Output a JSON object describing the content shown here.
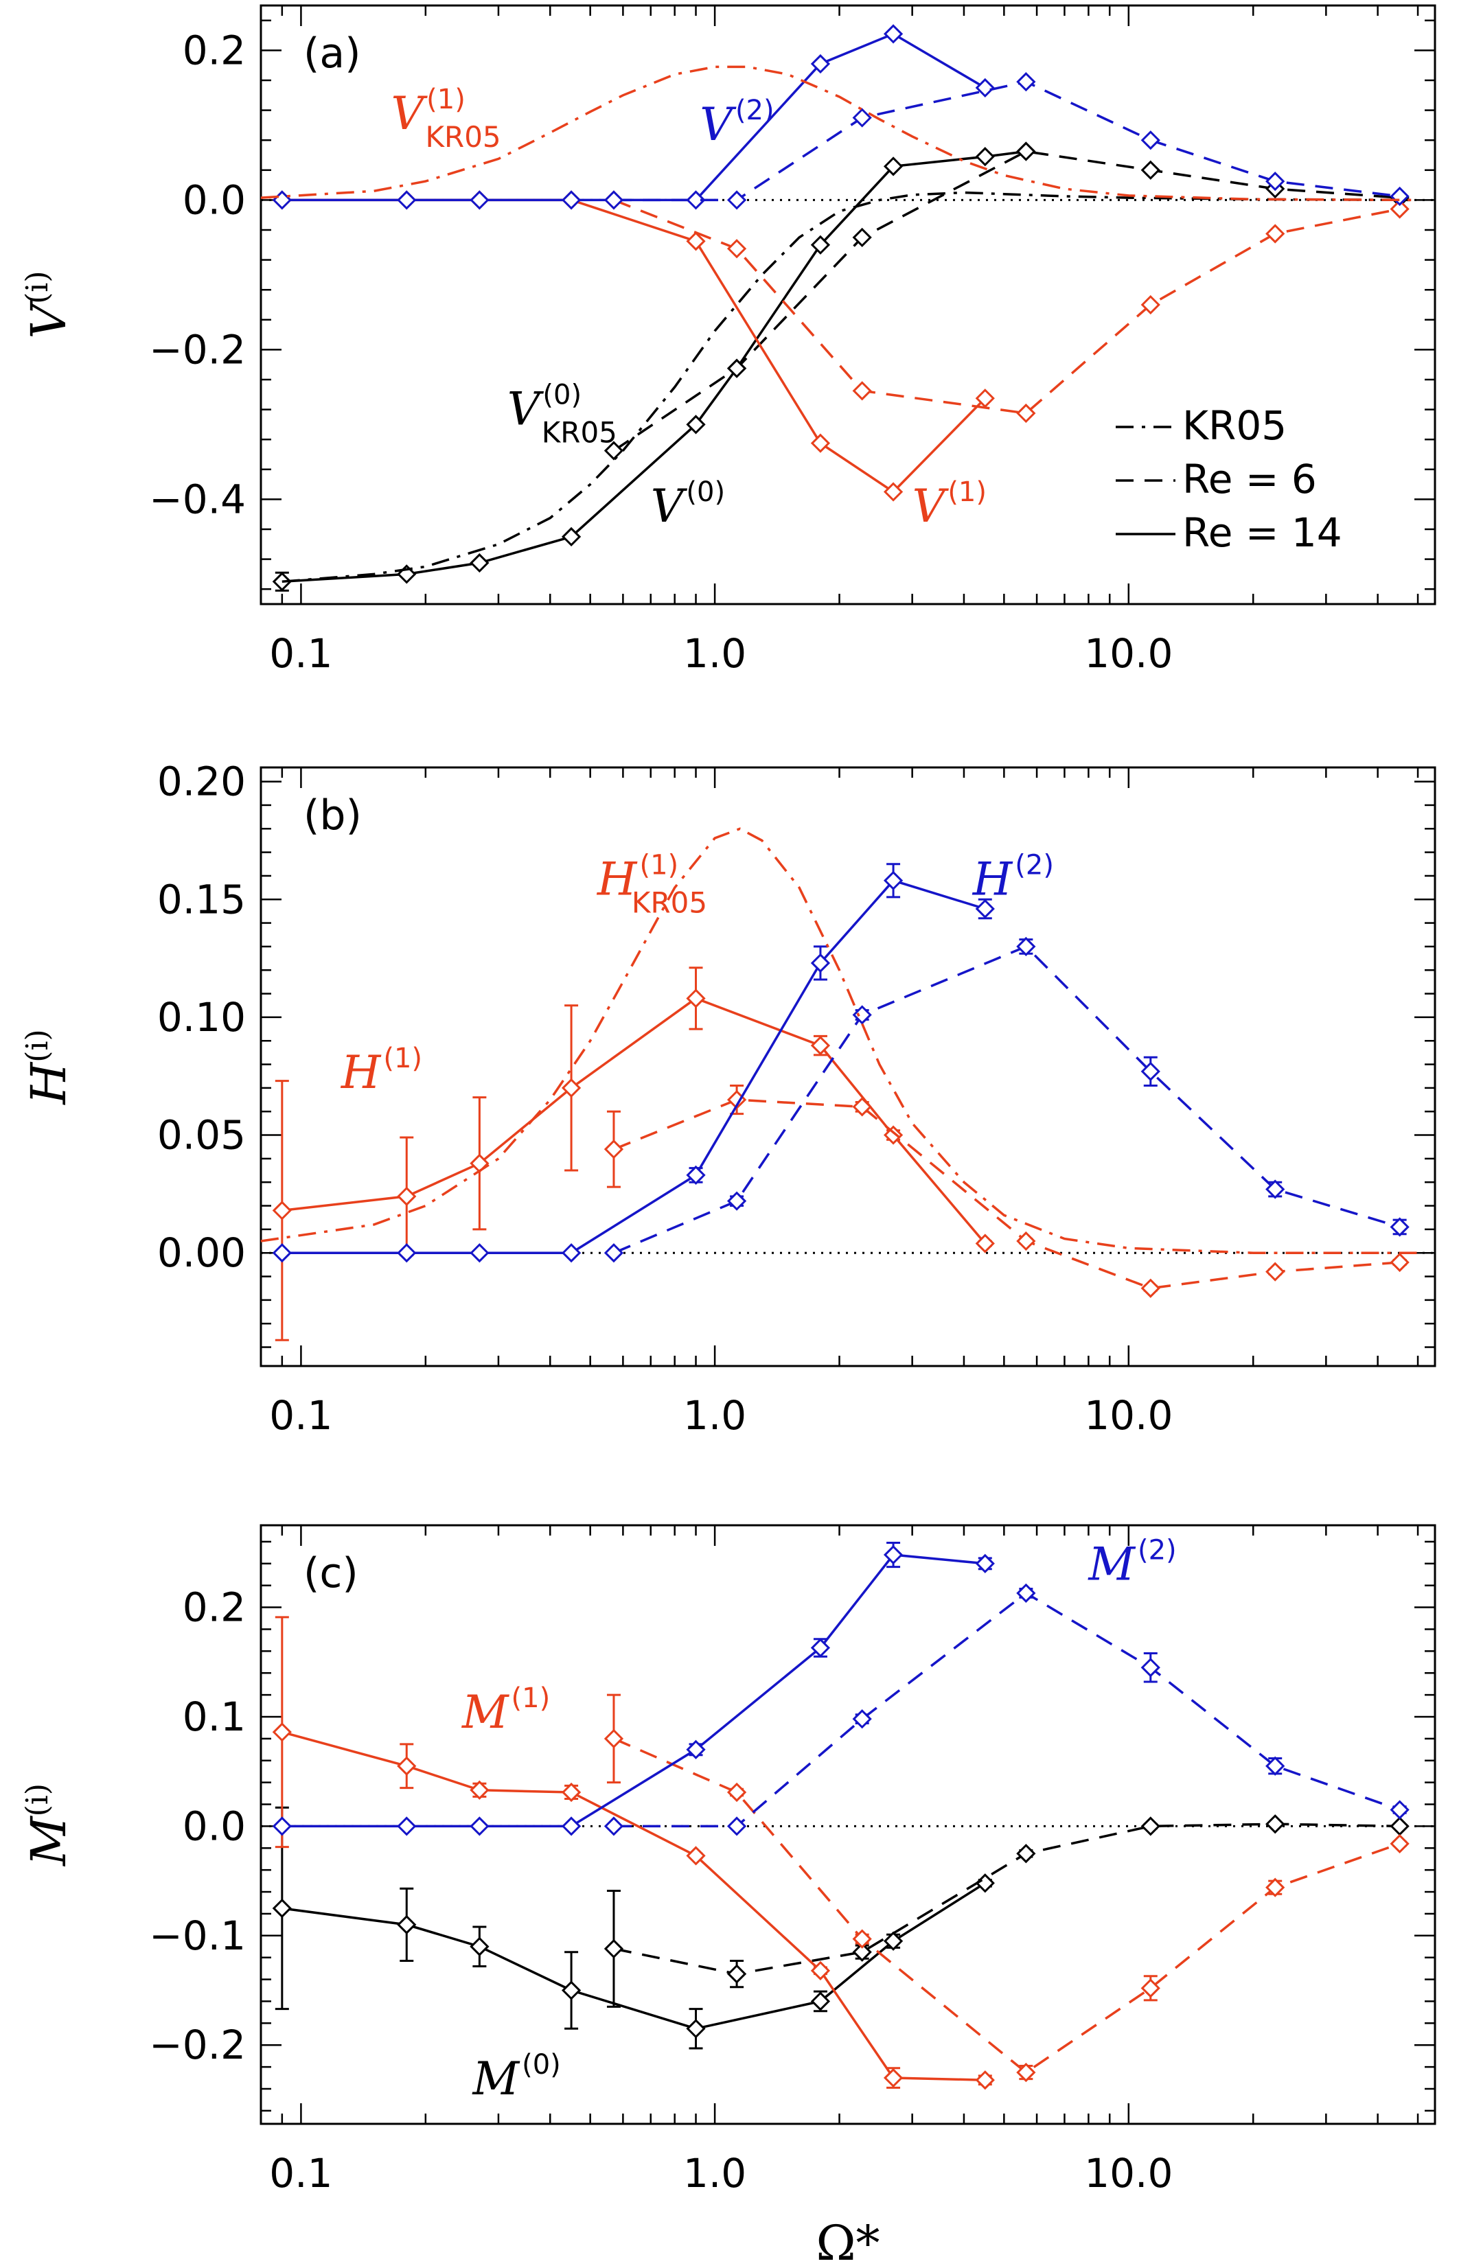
{
  "colors": {
    "black": "#000000",
    "red": "#e8401c",
    "blue": "#1515c8"
  },
  "chart_data": {
    "type": "line",
    "xlabel": "Ω*",
    "xscale": "log",
    "xlim": [
      0.08,
      55
    ],
    "xticks": [
      0.1,
      1.0,
      10.0
    ],
    "xtick_labels": [
      "0.1",
      "1.0",
      "10.0"
    ],
    "legend": {
      "placement": "bottom-right of panel (a)",
      "entries": [
        {
          "label": "KR05",
          "style": "dash-dot"
        },
        {
          "label": "Re =   6",
          "style": "dashed"
        },
        {
          "label": "Re = 14",
          "style": "solid"
        }
      ]
    },
    "panels": [
      {
        "label": "(a)",
        "ylabel": "V",
        "ylabel_sup": "(i)",
        "ylim": [
          -0.54,
          0.26
        ],
        "yticks": [
          -0.4,
          -0.2,
          0.0,
          0.2
        ],
        "ytick_labels": [
          "−0.4",
          "−0.2",
          "0.0",
          "0.2"
        ],
        "series": [
          {
            "name": "V(0) Re=14",
            "color": "black",
            "style": "solid",
            "markers": true,
            "x": [
              0.09,
              0.18,
              0.27,
              0.45,
              0.9,
              1.13,
              1.8,
              2.7,
              4.5,
              5.65
            ],
            "y": [
              -0.51,
              -0.5,
              -0.485,
              -0.45,
              -0.3,
              -0.225,
              -0.06,
              0.045,
              0.058,
              0.065
            ],
            "err": [
              0.012,
              0.0,
              0.0,
              0.0,
              0.0,
              0.0,
              0.0,
              0.0,
              0.0,
              0.0
            ]
          },
          {
            "name": "V(0) Re=6",
            "color": "black",
            "style": "dashed",
            "markers": true,
            "x": [
              0.57,
              1.13,
              2.27,
              5.65,
              11.3,
              22.6,
              45.2
            ],
            "y": [
              -0.335,
              -0.225,
              -0.05,
              0.065,
              0.04,
              0.015,
              0.003
            ],
            "err": [
              0,
              0,
              0,
              0,
              0,
              0,
              0
            ]
          },
          {
            "name": "V(1) Re=14",
            "color": "red",
            "style": "solid",
            "markers": true,
            "x": [
              0.09,
              0.18,
              0.27,
              0.45,
              0.9,
              1.8,
              2.7,
              4.5
            ],
            "y": [
              0,
              0,
              0,
              0,
              -0.055,
              -0.325,
              -0.39,
              -0.265
            ],
            "err": [
              0,
              0,
              0,
              0,
              0,
              0,
              0,
              0
            ]
          },
          {
            "name": "V(1) Re=6",
            "color": "red",
            "style": "dashed",
            "markers": true,
            "x": [
              0.57,
              1.13,
              2.27,
              5.65,
              11.3,
              22.6,
              45.2
            ],
            "y": [
              0,
              -0.065,
              -0.255,
              -0.285,
              -0.14,
              -0.045,
              -0.012
            ],
            "err": [
              0,
              0,
              0,
              0,
              0,
              0,
              0
            ]
          },
          {
            "name": "V(2) Re=14",
            "color": "blue",
            "style": "solid",
            "markers": true,
            "x": [
              0.09,
              0.18,
              0.27,
              0.45,
              0.9,
              1.8,
              2.7,
              4.5
            ],
            "y": [
              0,
              0,
              0,
              0,
              0,
              0.182,
              0.222,
              0.15
            ],
            "err": [
              0,
              0,
              0,
              0,
              0,
              0,
              0,
              0
            ]
          },
          {
            "name": "V(2) Re=6",
            "color": "blue",
            "style": "dashed",
            "markers": true,
            "x": [
              0.57,
              1.13,
              2.27,
              5.65,
              11.3,
              22.6,
              45.2
            ],
            "y": [
              0,
              0,
              0.11,
              0.158,
              0.08,
              0.025,
              0.005
            ],
            "err": [
              0,
              0,
              0,
              0,
              0,
              0,
              0
            ]
          },
          {
            "name": "V(0) KR05",
            "color": "black",
            "style": "dashdot",
            "markers": false,
            "x": [
              0.09,
              0.15,
              0.2,
              0.3,
              0.4,
              0.5,
              0.6,
              0.8,
              1.0,
              1.3,
              1.6,
              2.0,
              2.5,
              3.0,
              4.0,
              5.0,
              7.0,
              10.0,
              20.0,
              50.0
            ],
            "y": [
              -0.51,
              -0.5,
              -0.49,
              -0.46,
              -0.425,
              -0.38,
              -0.335,
              -0.25,
              -0.175,
              -0.1,
              -0.05,
              -0.015,
              0.0,
              0.007,
              0.01,
              0.008,
              0.005,
              0.003,
              0.001,
              0.0
            ]
          },
          {
            "name": "V(1) KR05",
            "color": "red",
            "style": "dashdot",
            "markers": false,
            "x": [
              0.08,
              0.15,
              0.2,
              0.3,
              0.4,
              0.5,
              0.6,
              0.8,
              1.0,
              1.2,
              1.5,
              2.0,
              2.5,
              3.0,
              4.0,
              5.0,
              7.0,
              10.0,
              20.0,
              50.0
            ],
            "y": [
              0.003,
              0.012,
              0.025,
              0.055,
              0.09,
              0.118,
              0.14,
              0.168,
              0.178,
              0.178,
              0.168,
              0.138,
              0.108,
              0.085,
              0.052,
              0.033,
              0.015,
              0.006,
              0.001,
              0.0
            ]
          }
        ],
        "hline": 0.0,
        "annotations": [
          {
            "main": "V",
            "sup": "(1)",
            "sub": "KR05",
            "color": "red",
            "x": 0.165,
            "y": 0.095
          },
          {
            "main": "V",
            "sup": "(2)",
            "sub": "",
            "color": "blue",
            "x": 0.92,
            "y": 0.08
          },
          {
            "main": "V",
            "sup": "(0)",
            "sub": "KR05",
            "color": "black",
            "x": 0.315,
            "y": -0.3
          },
          {
            "main": "V",
            "sup": "(0)",
            "sub": "",
            "color": "black",
            "x": 0.7,
            "y": -0.43
          },
          {
            "main": "V",
            "sup": "(1)",
            "sub": "",
            "color": "red",
            "x": 3.0,
            "y": -0.43
          }
        ]
      },
      {
        "label": "(b)",
        "ylabel": "H",
        "ylabel_sup": "(i)",
        "ylim": [
          -0.048,
          0.206
        ],
        "yticks": [
          0.0,
          0.05,
          0.1,
          0.15,
          0.2
        ],
        "ytick_labels": [
          "0.00",
          "0.05",
          "0.10",
          "0.15",
          "0.20"
        ],
        "series": [
          {
            "name": "H(1) Re=14",
            "color": "red",
            "style": "solid",
            "markers": true,
            "x": [
              0.09,
              0.18,
              0.27,
              0.45,
              0.9,
              1.8,
              2.7,
              4.5
            ],
            "y": [
              0.018,
              0.024,
              0.038,
              0.07,
              0.108,
              0.088,
              0.05,
              0.004
            ],
            "err": [
              0.055,
              0.025,
              0.028,
              0.035,
              0.013,
              0.004,
              0.002,
              0.001
            ]
          },
          {
            "name": "H(1) Re=6",
            "color": "red",
            "style": "dashed",
            "markers": true,
            "x": [
              0.57,
              1.13,
              2.27,
              5.65,
              11.3,
              22.6,
              45.2
            ],
            "y": [
              0.044,
              0.065,
              0.062,
              0.005,
              -0.015,
              -0.008,
              -0.004
            ],
            "err": [
              0.016,
              0.006,
              0.002,
              0.001,
              0.001,
              0.001,
              0.001
            ]
          },
          {
            "name": "H(2) Re=14",
            "color": "blue",
            "style": "solid",
            "markers": true,
            "x": [
              0.09,
              0.18,
              0.27,
              0.45,
              0.9,
              1.8,
              2.7,
              4.5
            ],
            "y": [
              0,
              0,
              0,
              0,
              0.033,
              0.123,
              0.158,
              0.146
            ],
            "err": [
              0,
              0,
              0,
              0,
              0.003,
              0.007,
              0.007,
              0.004
            ]
          },
          {
            "name": "H(2) Re=6",
            "color": "blue",
            "style": "dashed",
            "markers": true,
            "x": [
              0.57,
              1.13,
              2.27,
              5.65,
              11.3,
              22.6,
              45.2
            ],
            "y": [
              0,
              0.022,
              0.101,
              0.13,
              0.077,
              0.027,
              0.011
            ],
            "err": [
              0,
              0.002,
              0.002,
              0.003,
              0.006,
              0.003,
              0.003
            ]
          },
          {
            "name": "H(1) KR05",
            "color": "red",
            "style": "dashdot",
            "markers": false,
            "x": [
              0.08,
              0.15,
              0.2,
              0.3,
              0.4,
              0.5,
              0.6,
              0.8,
              1.0,
              1.15,
              1.3,
              1.6,
              2.0,
              2.5,
              3.0,
              4.0,
              5.0,
              7.0,
              10.0,
              20.0,
              50.0
            ],
            "y": [
              0.005,
              0.012,
              0.02,
              0.04,
              0.065,
              0.09,
              0.115,
              0.155,
              0.176,
              0.18,
              0.175,
              0.155,
              0.12,
              0.08,
              0.055,
              0.03,
              0.016,
              0.006,
              0.002,
              0.0,
              0.0
            ]
          }
        ],
        "hline": 0.0,
        "annotations": [
          {
            "main": "H",
            "sup": "(1)",
            "sub": "KR05",
            "color": "red",
            "x": 0.52,
            "y": 0.152
          },
          {
            "main": "H",
            "sup": "(2)",
            "sub": "",
            "color": "blue",
            "x": 4.2,
            "y": 0.152
          },
          {
            "main": "H",
            "sup": "(1)",
            "sub": "",
            "color": "red",
            "x": 0.125,
            "y": 0.07
          }
        ]
      },
      {
        "label": "(c)",
        "ylabel": "M",
        "ylabel_sup": "(i)",
        "ylim": [
          -0.272,
          0.275
        ],
        "yticks": [
          -0.2,
          -0.1,
          0.0,
          0.1,
          0.2
        ],
        "ytick_labels": [
          "−0.2",
          "−0.1",
          "0.0",
          "0.1",
          "0.2"
        ],
        "series": [
          {
            "name": "M(0) Re=14",
            "color": "black",
            "style": "solid",
            "markers": true,
            "x": [
              0.09,
              0.18,
              0.27,
              0.45,
              0.9,
              1.8,
              2.7,
              4.5
            ],
            "y": [
              -0.075,
              -0.09,
              -0.11,
              -0.15,
              -0.185,
              -0.16,
              -0.105,
              -0.052
            ],
            "err": [
              0.092,
              0.033,
              0.018,
              0.035,
              0.018,
              0.009,
              0.006,
              0.003
            ]
          },
          {
            "name": "M(0) Re=6",
            "color": "black",
            "style": "dashed",
            "markers": true,
            "x": [
              0.57,
              1.13,
              2.27,
              5.65,
              11.3,
              22.6,
              45.2
            ],
            "y": [
              -0.112,
              -0.135,
              -0.115,
              -0.025,
              0.0,
              0.002,
              0.0
            ],
            "err": [
              0.053,
              0.012,
              0.006,
              0.003,
              0.002,
              0.001,
              0.001
            ]
          },
          {
            "name": "M(1) Re=14",
            "color": "red",
            "style": "solid",
            "markers": true,
            "x": [
              0.09,
              0.18,
              0.27,
              0.45,
              0.9,
              1.8,
              2.7,
              4.5
            ],
            "y": [
              0.086,
              0.055,
              0.033,
              0.031,
              -0.027,
              -0.132,
              -0.23,
              -0.232
            ],
            "err": [
              0.105,
              0.02,
              0.006,
              0.006,
              0.002,
              0.003,
              0.009,
              0.004
            ]
          },
          {
            "name": "M(1) Re=6",
            "color": "red",
            "style": "dashed",
            "markers": true,
            "x": [
              0.57,
              1.13,
              2.27,
              5.65,
              11.3,
              22.6,
              45.2
            ],
            "y": [
              0.08,
              0.031,
              -0.103,
              -0.225,
              -0.148,
              -0.056,
              -0.016
            ],
            "err": [
              0.04,
              0.003,
              0.004,
              0.006,
              0.011,
              0.006,
              0.002
            ]
          },
          {
            "name": "M(2) Re=14",
            "color": "blue",
            "style": "solid",
            "markers": true,
            "x": [
              0.09,
              0.18,
              0.27,
              0.45,
              0.9,
              1.8,
              2.7,
              4.5
            ],
            "y": [
              0,
              0,
              0,
              0,
              0.07,
              0.163,
              0.248,
              0.24
            ],
            "err": [
              0,
              0,
              0,
              0,
              0.005,
              0.008,
              0.011,
              0.005
            ]
          },
          {
            "name": "M(2) Re=6",
            "color": "blue",
            "style": "dashed",
            "markers": true,
            "x": [
              0.57,
              1.13,
              2.27,
              5.65,
              11.3,
              22.6,
              45.2
            ],
            "y": [
              0,
              0,
              0.098,
              0.213,
              0.145,
              0.055,
              0.015
            ],
            "err": [
              0,
              0,
              0.004,
              0.004,
              0.013,
              0.007,
              0.003
            ]
          }
        ],
        "hline": 0.0,
        "annotations": [
          {
            "main": "M",
            "sup": "(1)",
            "sub": "",
            "color": "red",
            "x": 0.245,
            "y": 0.09
          },
          {
            "main": "M",
            "sup": "(2)",
            "sub": "",
            "color": "blue",
            "x": 8.0,
            "y": 0.225
          },
          {
            "main": "M",
            "sup": "(0)",
            "sub": "",
            "color": "black",
            "x": 0.26,
            "y": -0.245
          }
        ]
      }
    ]
  }
}
